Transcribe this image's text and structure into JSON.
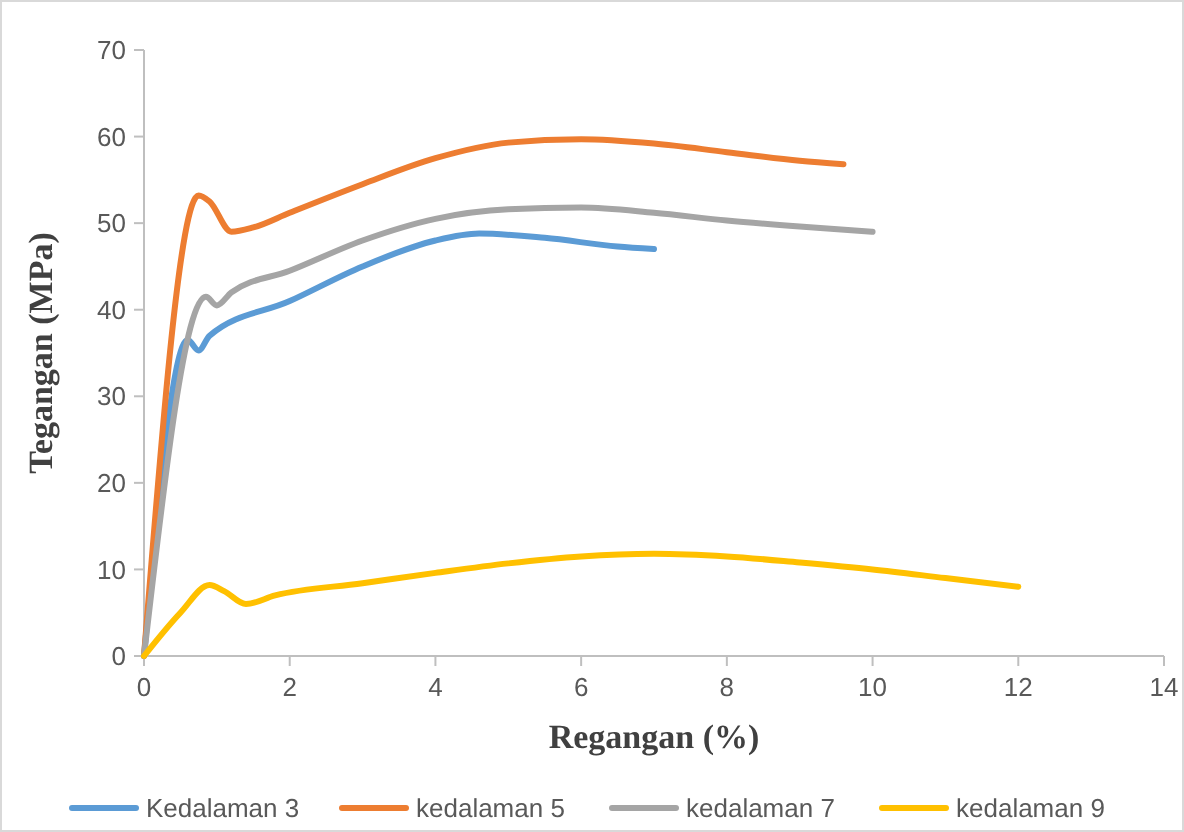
{
  "chart_data": {
    "type": "line",
    "xlabel": "Regangan (%)",
    "ylabel": "Tegangan (MPa)",
    "xlim": [
      0,
      14
    ],
    "xticks": [
      0,
      2,
      4,
      6,
      8,
      10,
      12,
      14
    ],
    "ylim": [
      0,
      70
    ],
    "yticks": [
      0,
      10,
      20,
      30,
      40,
      50,
      60,
      70
    ],
    "grid": false,
    "legend": "bottom",
    "marker": "none",
    "line_style": "solid",
    "series": [
      {
        "name": "Kedalaman 3",
        "color": "#5b9bd5",
        "x": [
          0,
          0.6,
          0.75,
          0.9,
          2,
          3,
          4,
          4.6,
          5.5,
          6.5,
          7
        ],
        "values": [
          0,
          36.5,
          35.3,
          37,
          41,
          45,
          48,
          48.8,
          48.3,
          47.3,
          47
        ]
      },
      {
        "name": "kedalaman 5",
        "color": "#ed7d31",
        "x": [
          0,
          0.75,
          0.9,
          1.2,
          1.5,
          2,
          3,
          4,
          5,
          6,
          7,
          8,
          9,
          9.6
        ],
        "values": [
          0,
          53.2,
          52.5,
          49,
          49.5,
          51.2,
          54.5,
          57.5,
          59.3,
          59.7,
          59.2,
          58.2,
          57.2,
          56.8
        ]
      },
      {
        "name": "kedalaman 7",
        "color": "#a5a5a5",
        "x": [
          0,
          0.85,
          1.0,
          1.2,
          2,
          3,
          4,
          5,
          6,
          7,
          8,
          9,
          10
        ],
        "values": [
          0,
          41.5,
          40.5,
          42,
          44.5,
          48,
          50.5,
          51.6,
          51.8,
          51.2,
          50.3,
          49.6,
          49
        ]
      },
      {
        "name": "kedalaman 9",
        "color": "#ffc000",
        "x": [
          0,
          0.5,
          0.9,
          1.1,
          1.4,
          1.8,
          3,
          4,
          5,
          6,
          7,
          8,
          9,
          10,
          11,
          12
        ],
        "values": [
          0,
          5,
          8.2,
          7.5,
          6,
          7,
          8.4,
          9.6,
          10.7,
          11.5,
          11.8,
          11.5,
          10.8,
          10,
          9,
          8
        ]
      }
    ]
  }
}
